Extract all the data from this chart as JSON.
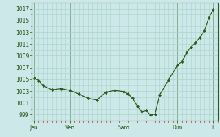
{
  "bg_color": "#cce8e8",
  "grid_color": "#aad4cc",
  "line_color": "#2d5a1b",
  "marker_color": "#2d5a1b",
  "axis_label_color": "#2d5a1b",
  "tick_color": "#cc3333",
  "x_day_labels": [
    "Jeu",
    "Ven",
    "Sam",
    "Dim",
    "L"
  ],
  "x_day_positions": [
    0,
    16,
    40,
    64,
    80
  ],
  "ylim": [
    998.0,
    1018.0
  ],
  "yticks": [
    999,
    1001,
    1003,
    1005,
    1007,
    1009,
    1011,
    1013,
    1015,
    1017
  ],
  "data_x": [
    0,
    2,
    4,
    8,
    12,
    16,
    20,
    24,
    28,
    32,
    36,
    40,
    42,
    44,
    46,
    48,
    50,
    52,
    54,
    56,
    60,
    64,
    66,
    68,
    70,
    72,
    74,
    76,
    78,
    80
  ],
  "data_y": [
    1005.2,
    1004.8,
    1003.9,
    1003.2,
    1003.4,
    1003.1,
    1002.5,
    1001.8,
    1001.5,
    1002.8,
    1003.1,
    1002.9,
    1002.5,
    1001.8,
    1000.5,
    999.5,
    999.7,
    998.9,
    999.1,
    1002.3,
    1004.9,
    1007.4,
    1008.0,
    1009.5,
    1010.5,
    1011.2,
    1012.1,
    1013.2,
    1015.5,
    1016.8
  ]
}
